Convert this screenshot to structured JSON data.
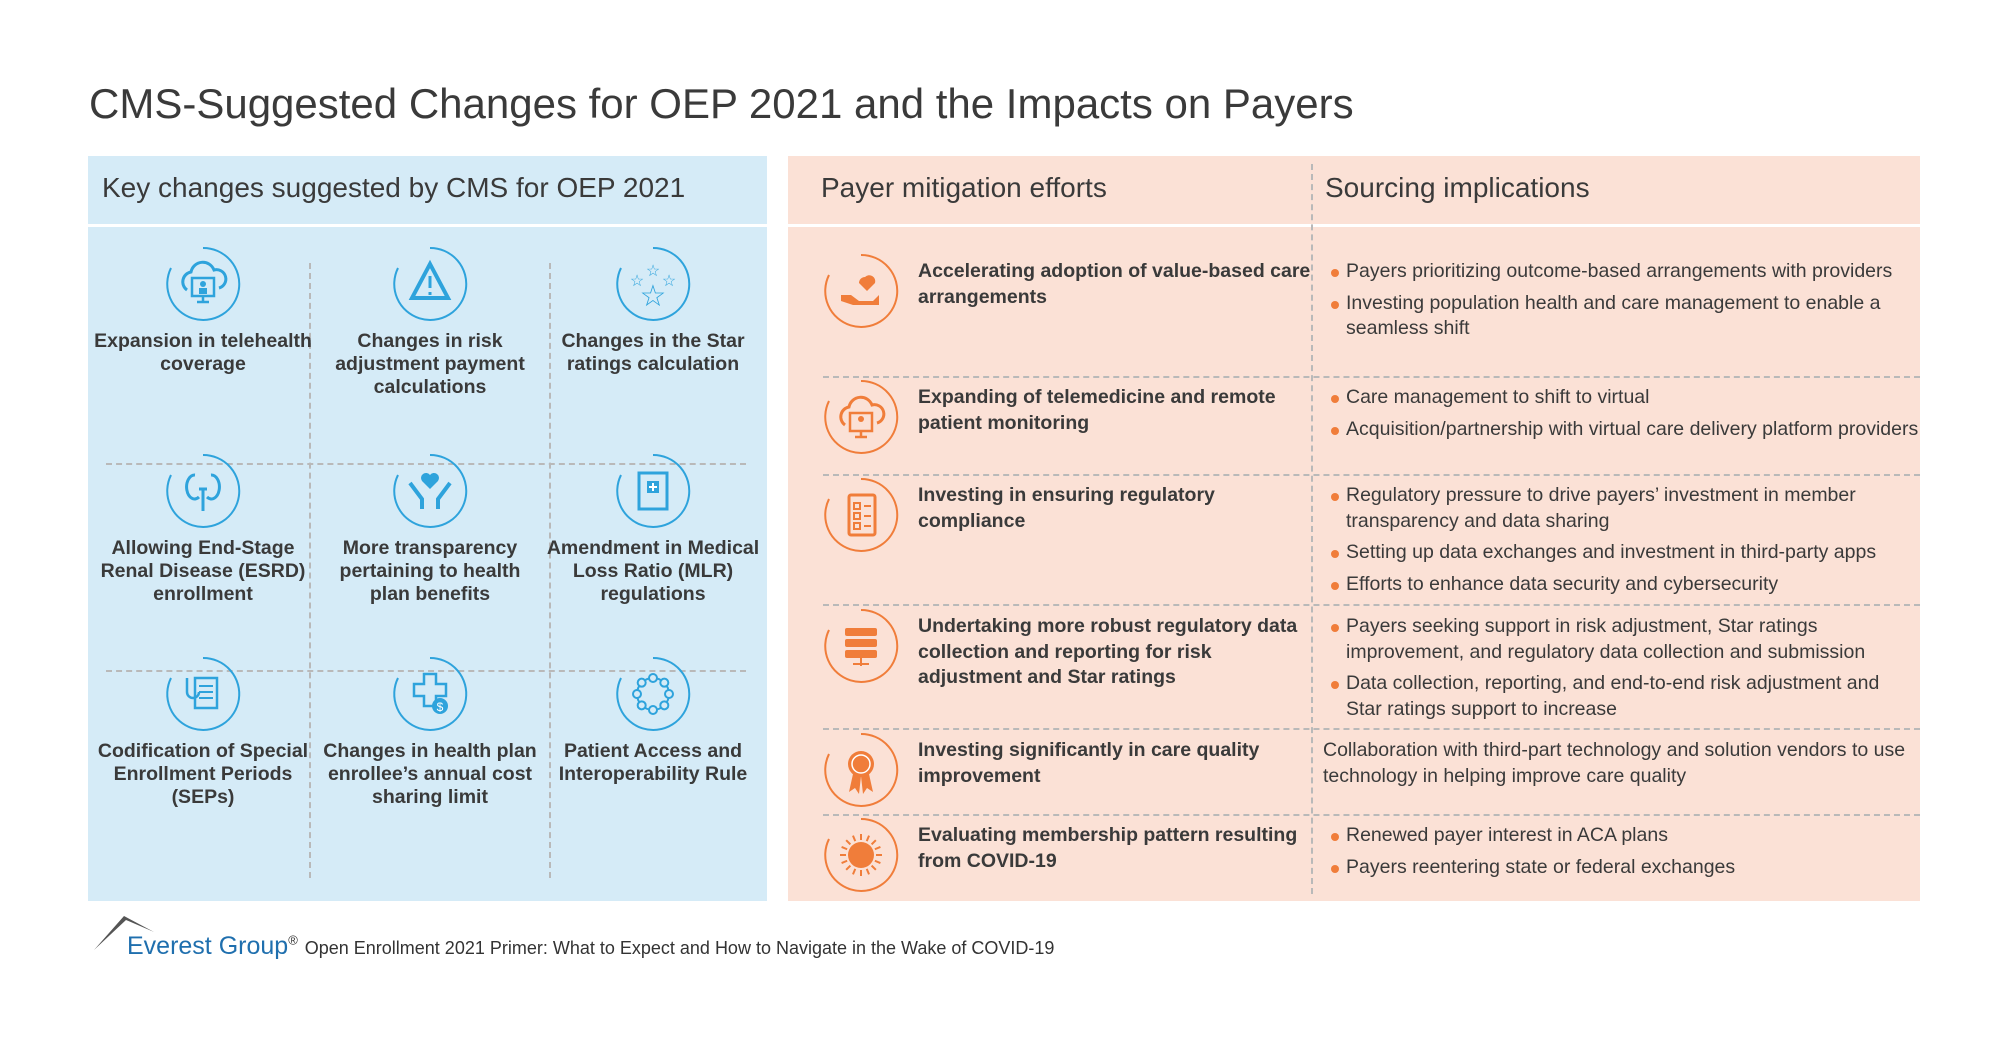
{
  "title": "CMS-Suggested Changes for OEP 2021 and the Impacts on Payers",
  "colors": {
    "blue_panel": "#d5ebf7",
    "orange_panel": "#fbe1d6",
    "blue_icon": "#2ea3dc",
    "orange_icon": "#f07d3a",
    "brand": "#1f6fae"
  },
  "left": {
    "header": "Key changes suggested by CMS for OEP 2021",
    "items": [
      {
        "icon": "cloud-telehealth-icon",
        "label": "Expansion in telehealth coverage"
      },
      {
        "icon": "warning-triangle-icon",
        "label": "Changes in risk adjustment payment calculations"
      },
      {
        "icon": "stars-icon",
        "label": "Changes in the Star ratings calculation"
      },
      {
        "icon": "kidney-icon",
        "label": "Allowing End-Stage Renal Disease (ESRD) enrollment"
      },
      {
        "icon": "hands-heart-icon",
        "label": "More transparency pertaining to health plan benefits"
      },
      {
        "icon": "medical-book-icon",
        "label": "Amendment in Medical Loss Ratio (MLR) regulations"
      },
      {
        "icon": "stethoscope-document-icon",
        "label": "Codification of Special Enrollment Periods (SEPs)"
      },
      {
        "icon": "medical-cost-icon",
        "label": "Changes in health plan enrollee’s annual cost sharing limit"
      },
      {
        "icon": "network-circle-icon",
        "label": "Patient Access and Interoperability Rule"
      }
    ]
  },
  "right": {
    "header_mitigation": "Payer mitigation efforts",
    "header_sourcing": "Sourcing implications",
    "rows": [
      {
        "icon": "hand-heart-icon",
        "effort": "Accelerating adoption of value-based care arrangements",
        "implications": [
          "Payers prioritizing outcome-based arrangements with providers",
          "Investing population health and care management to enable a seamless shift"
        ]
      },
      {
        "icon": "cloud-telemedicine-icon",
        "effort": "Expanding of telemedicine and remote patient monitoring",
        "implications": [
          "Care management to shift to virtual",
          "Acquisition/partnership with virtual care delivery platform providers"
        ]
      },
      {
        "icon": "checklist-icon",
        "effort": "Investing in ensuring regulatory compliance",
        "implications": [
          "Regulatory pressure to drive payers’ investment in member transparency and data sharing",
          "Setting up data exchanges and investment in third-party apps",
          "Efforts to enhance data security and cybersecurity"
        ]
      },
      {
        "icon": "server-icon",
        "effort": "Undertaking more robust regulatory data collection and reporting for risk adjustment and Star ratings",
        "implications": [
          "Payers seeking support in risk adjustment, Star ratings improvement, and regulatory data collection and submission",
          "Data collection, reporting, and end-to-end risk adjustment and Star ratings support to increase"
        ]
      },
      {
        "icon": "award-ribbon-icon",
        "effort": "Investing significantly in care quality improvement",
        "implication_text": "Collaboration with third-part technology and solution vendors to use technology in helping improve care quality"
      },
      {
        "icon": "virus-icon",
        "effort": "Evaluating membership pattern resulting from COVID-19",
        "implications": [
          "Renewed payer interest in ACA plans",
          "Payers reentering state or federal exchanges"
        ]
      }
    ]
  },
  "footer": {
    "logo": "Everest Group",
    "registered": "®",
    "source": "Open Enrollment 2021 Primer: What to Expect and How to Navigate in the Wake of COVID-19"
  }
}
